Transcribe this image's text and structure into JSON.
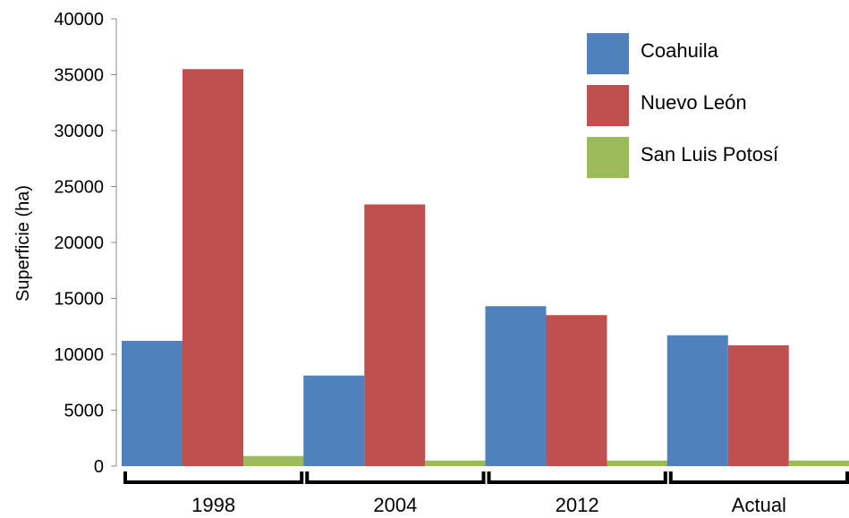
{
  "chart_data": {
    "type": "bar",
    "categories": [
      "1998",
      "2004",
      "2012",
      "Actual"
    ],
    "series": [
      {
        "name": "Coahuila",
        "values": [
          11200,
          8100,
          14300,
          11700
        ],
        "color": "#4f81bd"
      },
      {
        "name": "Nuevo León",
        "values": [
          35500,
          23400,
          13500,
          10800
        ],
        "color": "#c0504d"
      },
      {
        "name": "San Luis Potosí",
        "values": [
          900,
          500,
          500,
          500
        ],
        "color": "#9bbb59"
      }
    ],
    "title": "",
    "xlabel": "",
    "ylabel": "Superficie (ha)",
    "ylim": [
      0,
      40000
    ],
    "yticks": [
      0,
      5000,
      10000,
      15000,
      20000,
      25000,
      30000,
      35000,
      40000
    ],
    "grid": false,
    "legend_position": "top-right"
  }
}
